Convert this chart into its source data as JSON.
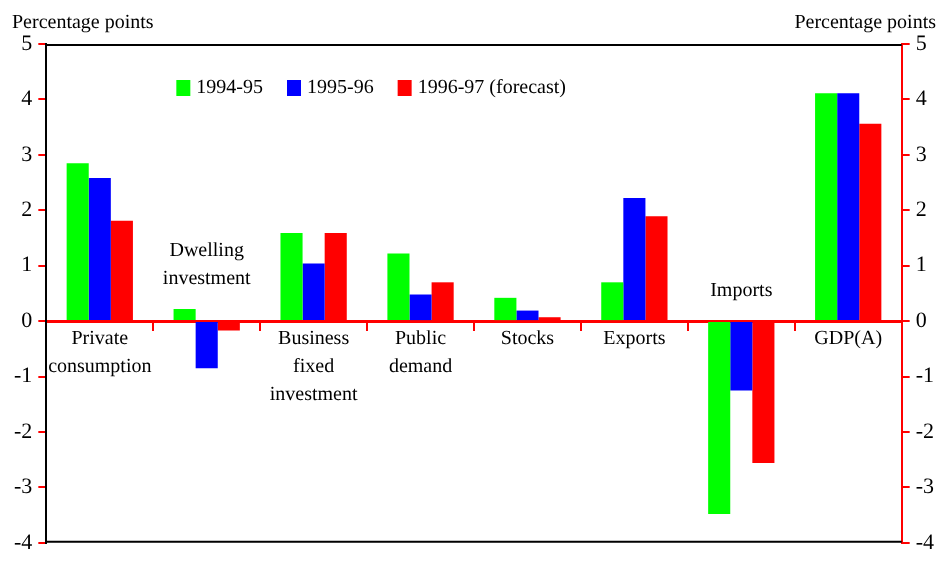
{
  "chart_data": {
    "type": "bar",
    "categories": [
      "Private consumption",
      "Dwelling investment",
      "Business fixed investment",
      "Public demand",
      "Stocks",
      "Exports",
      "Imports",
      "GDP(A)"
    ],
    "series": [
      {
        "name": "1994-95",
        "color": "#00ff00",
        "values": [
          2.85,
          0.22,
          1.59,
          1.22,
          0.42,
          0.7,
          -3.48,
          4.11
        ]
      },
      {
        "name": "1995-96",
        "color": "#0000ff",
        "values": [
          2.58,
          -0.85,
          1.04,
          0.48,
          0.19,
          2.22,
          -1.25,
          4.11
        ]
      },
      {
        "name": "1996-97 (forecast)",
        "color": "#ff0000",
        "values": [
          1.81,
          -0.17,
          1.59,
          0.7,
          0.07,
          1.89,
          -2.56,
          3.56
        ]
      }
    ],
    "ylabel": "Percentage points",
    "y2label": "Percentage points",
    "ylim": [
      -4,
      5
    ],
    "yticks": [
      -4,
      -3,
      -2,
      -1,
      0,
      1,
      2,
      3,
      4,
      5
    ],
    "y2lim": [
      -4,
      5
    ],
    "y2ticks": [
      -4,
      -3,
      -2,
      -1,
      0,
      1,
      2,
      3,
      4,
      5
    ],
    "grid": false,
    "legend": "top"
  }
}
